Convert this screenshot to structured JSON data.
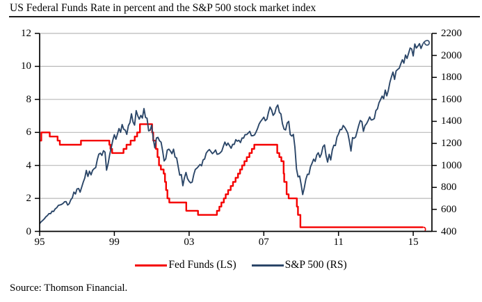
{
  "title": "US Federal Funds Rate in percent and the S&P 500 stock market index",
  "source": "Source: Thomson Financial.",
  "legend": [
    {
      "label": "Fed Funds (LS)",
      "color": "#f50000"
    },
    {
      "label": "S&P 500 (RS)",
      "color": "#2b4668"
    }
  ],
  "colors": {
    "fed_funds": "#f50000",
    "sp500": "#2b4668",
    "grid": "#b9b9b9",
    "axis": "#000000",
    "background": "#ffffff"
  },
  "chart_data": {
    "type": "line",
    "title": "US Federal Funds Rate in percent and the S&P 500 stock market index",
    "legend_position": "bottom",
    "grid": "horizontal",
    "left_axis": {
      "tick_labels": [
        "12",
        "10",
        "8",
        "6",
        "4",
        "2",
        "0"
      ],
      "values": [
        12,
        10,
        8,
        6,
        4,
        2,
        0
      ],
      "range": [
        0,
        12
      ]
    },
    "right_axis": {
      "tick_labels": [
        "2200",
        "2000",
        "1800",
        "1600",
        "1400",
        "1200",
        "1000",
        "800",
        "600",
        "400"
      ],
      "values": [
        2200,
        2000,
        1800,
        1600,
        1400,
        1200,
        1000,
        800,
        600,
        400
      ],
      "range": [
        400,
        2200
      ]
    },
    "x_axis": {
      "tick_labels": [
        "95",
        "99",
        "03",
        "07",
        "11",
        "15"
      ],
      "tick_years": [
        1995,
        1999,
        2003,
        2007,
        2011,
        2015
      ],
      "range": [
        1995,
        2016
      ]
    },
    "series": [
      {
        "name": "Fed Funds (LS)",
        "axis": "left",
        "style": "step",
        "color": "#f50000",
        "points": [
          [
            1995.0,
            5.5
          ],
          [
            1995.09,
            6.0
          ],
          [
            1995.54,
            5.75
          ],
          [
            1995.96,
            5.5
          ],
          [
            1996.08,
            5.25
          ],
          [
            1997.21,
            5.5
          ],
          [
            1998.73,
            5.25
          ],
          [
            1998.79,
            5.0
          ],
          [
            1998.88,
            4.75
          ],
          [
            1999.49,
            5.0
          ],
          [
            1999.65,
            5.25
          ],
          [
            1999.87,
            5.5
          ],
          [
            2000.09,
            5.75
          ],
          [
            2000.22,
            6.0
          ],
          [
            2000.37,
            6.5
          ],
          [
            2001.02,
            6.0
          ],
          [
            2001.08,
            5.5
          ],
          [
            2001.22,
            5.0
          ],
          [
            2001.31,
            4.5
          ],
          [
            2001.39,
            4.0
          ],
          [
            2001.49,
            3.75
          ],
          [
            2001.64,
            3.5
          ],
          [
            2001.71,
            3.0
          ],
          [
            2001.77,
            2.5
          ],
          [
            2001.84,
            2.0
          ],
          [
            2001.94,
            1.75
          ],
          [
            2002.85,
            1.25
          ],
          [
            2003.48,
            1.0
          ],
          [
            2004.49,
            1.25
          ],
          [
            2004.62,
            1.5
          ],
          [
            2004.73,
            1.75
          ],
          [
            2004.86,
            2.0
          ],
          [
            2004.96,
            2.25
          ],
          [
            2005.09,
            2.5
          ],
          [
            2005.23,
            2.75
          ],
          [
            2005.35,
            3.0
          ],
          [
            2005.49,
            3.25
          ],
          [
            2005.62,
            3.5
          ],
          [
            2005.73,
            3.75
          ],
          [
            2005.84,
            4.0
          ],
          [
            2005.96,
            4.25
          ],
          [
            2006.09,
            4.5
          ],
          [
            2006.23,
            4.75
          ],
          [
            2006.36,
            5.0
          ],
          [
            2006.49,
            5.25
          ],
          [
            2007.72,
            4.75
          ],
          [
            2007.83,
            4.5
          ],
          [
            2007.94,
            4.25
          ],
          [
            2008.06,
            3.5
          ],
          [
            2008.09,
            3.0
          ],
          [
            2008.22,
            2.25
          ],
          [
            2008.33,
            2.0
          ],
          [
            2008.77,
            1.5
          ],
          [
            2008.83,
            1.0
          ],
          [
            2008.96,
            0.25
          ],
          [
            2015.52,
            0.25
          ]
        ]
      },
      {
        "name": "S&P 500 (RS)",
        "axis": "right",
        "style": "line",
        "color": "#2b4668",
        "start_year": 1995,
        "step_years": 0.08333,
        "values": [
          470,
          487,
          500,
          514,
          533,
          544,
          562,
          561,
          584,
          581,
          605,
          615,
          636,
          640,
          645,
          654,
          669,
          671,
          640,
          651,
          687,
          705,
          757,
          740,
          786,
          790,
          757,
          801,
          848,
          885,
          954,
          899,
          947,
          914,
          955,
          970,
          980,
          1049,
          1101,
          1111,
          1090,
          1133,
          1120,
          957,
          1017,
          1098,
          1163,
          1229,
          1279,
          1238,
          1286,
          1335,
          1301,
          1372,
          1328,
          1320,
          1282,
          1362,
          1388,
          1469,
          1394,
          1366,
          1498,
          1452,
          1420,
          1454,
          1430,
          1517,
          1436,
          1429,
          1314,
          1320,
          1366,
          1239,
          1160,
          1249,
          1255,
          1224,
          1211,
          1133,
          1040,
          1059,
          1139,
          1148,
          1130,
          1106,
          1147,
          1076,
          1067,
          989,
          911,
          916,
          815,
          885,
          936,
          880,
          855,
          841,
          848,
          916,
          963,
          974,
          990,
          1008,
          996,
          1050,
          1058,
          1112,
          1131,
          1144,
          1126,
          1107,
          1120,
          1140,
          1101,
          1104,
          1114,
          1130,
          1173,
          1212,
          1181,
          1203,
          1180,
          1156,
          1191,
          1191,
          1234,
          1220,
          1228,
          1207,
          1249,
          1248,
          1280,
          1280,
          1294,
          1310,
          1270,
          1270,
          1276,
          1303,
          1335,
          1377,
          1400,
          1418,
          1438,
          1406,
          1420,
          1482,
          1530,
          1503,
          1455,
          1473,
          1526,
          1549,
          1481,
          1468,
          1378,
          1330,
          1322,
          1385,
          1400,
          1280,
          1267,
          1282,
          1166,
          968,
          896,
          903,
          825,
          735,
          797,
          872,
          919,
          919,
          987,
          1020,
          1057,
          1036,
          1095,
          1115,
          1073,
          1104,
          1169,
          1186,
          1089,
          1030,
          1101,
          1049,
          1141,
          1183,
          1180,
          1258,
          1286,
          1327,
          1325,
          1363,
          1345,
          1320,
          1292,
          1218,
          1131,
          1253,
          1246,
          1258,
          1312,
          1365,
          1408,
          1397,
          1310,
          1362,
          1379,
          1406,
          1440,
          1412,
          1416,
          1426,
          1498,
          1514,
          1569,
          1597,
          1630,
          1606,
          1685,
          1632,
          1681,
          1756,
          1805,
          1848,
          1782,
          1859,
          1872,
          1883,
          1923,
          1960,
          1930,
          2003,
          1972,
          2018,
          2067,
          2058,
          1995,
          2104,
          2067,
          2085,
          2107,
          2063,
          2100
        ]
      }
    ]
  }
}
